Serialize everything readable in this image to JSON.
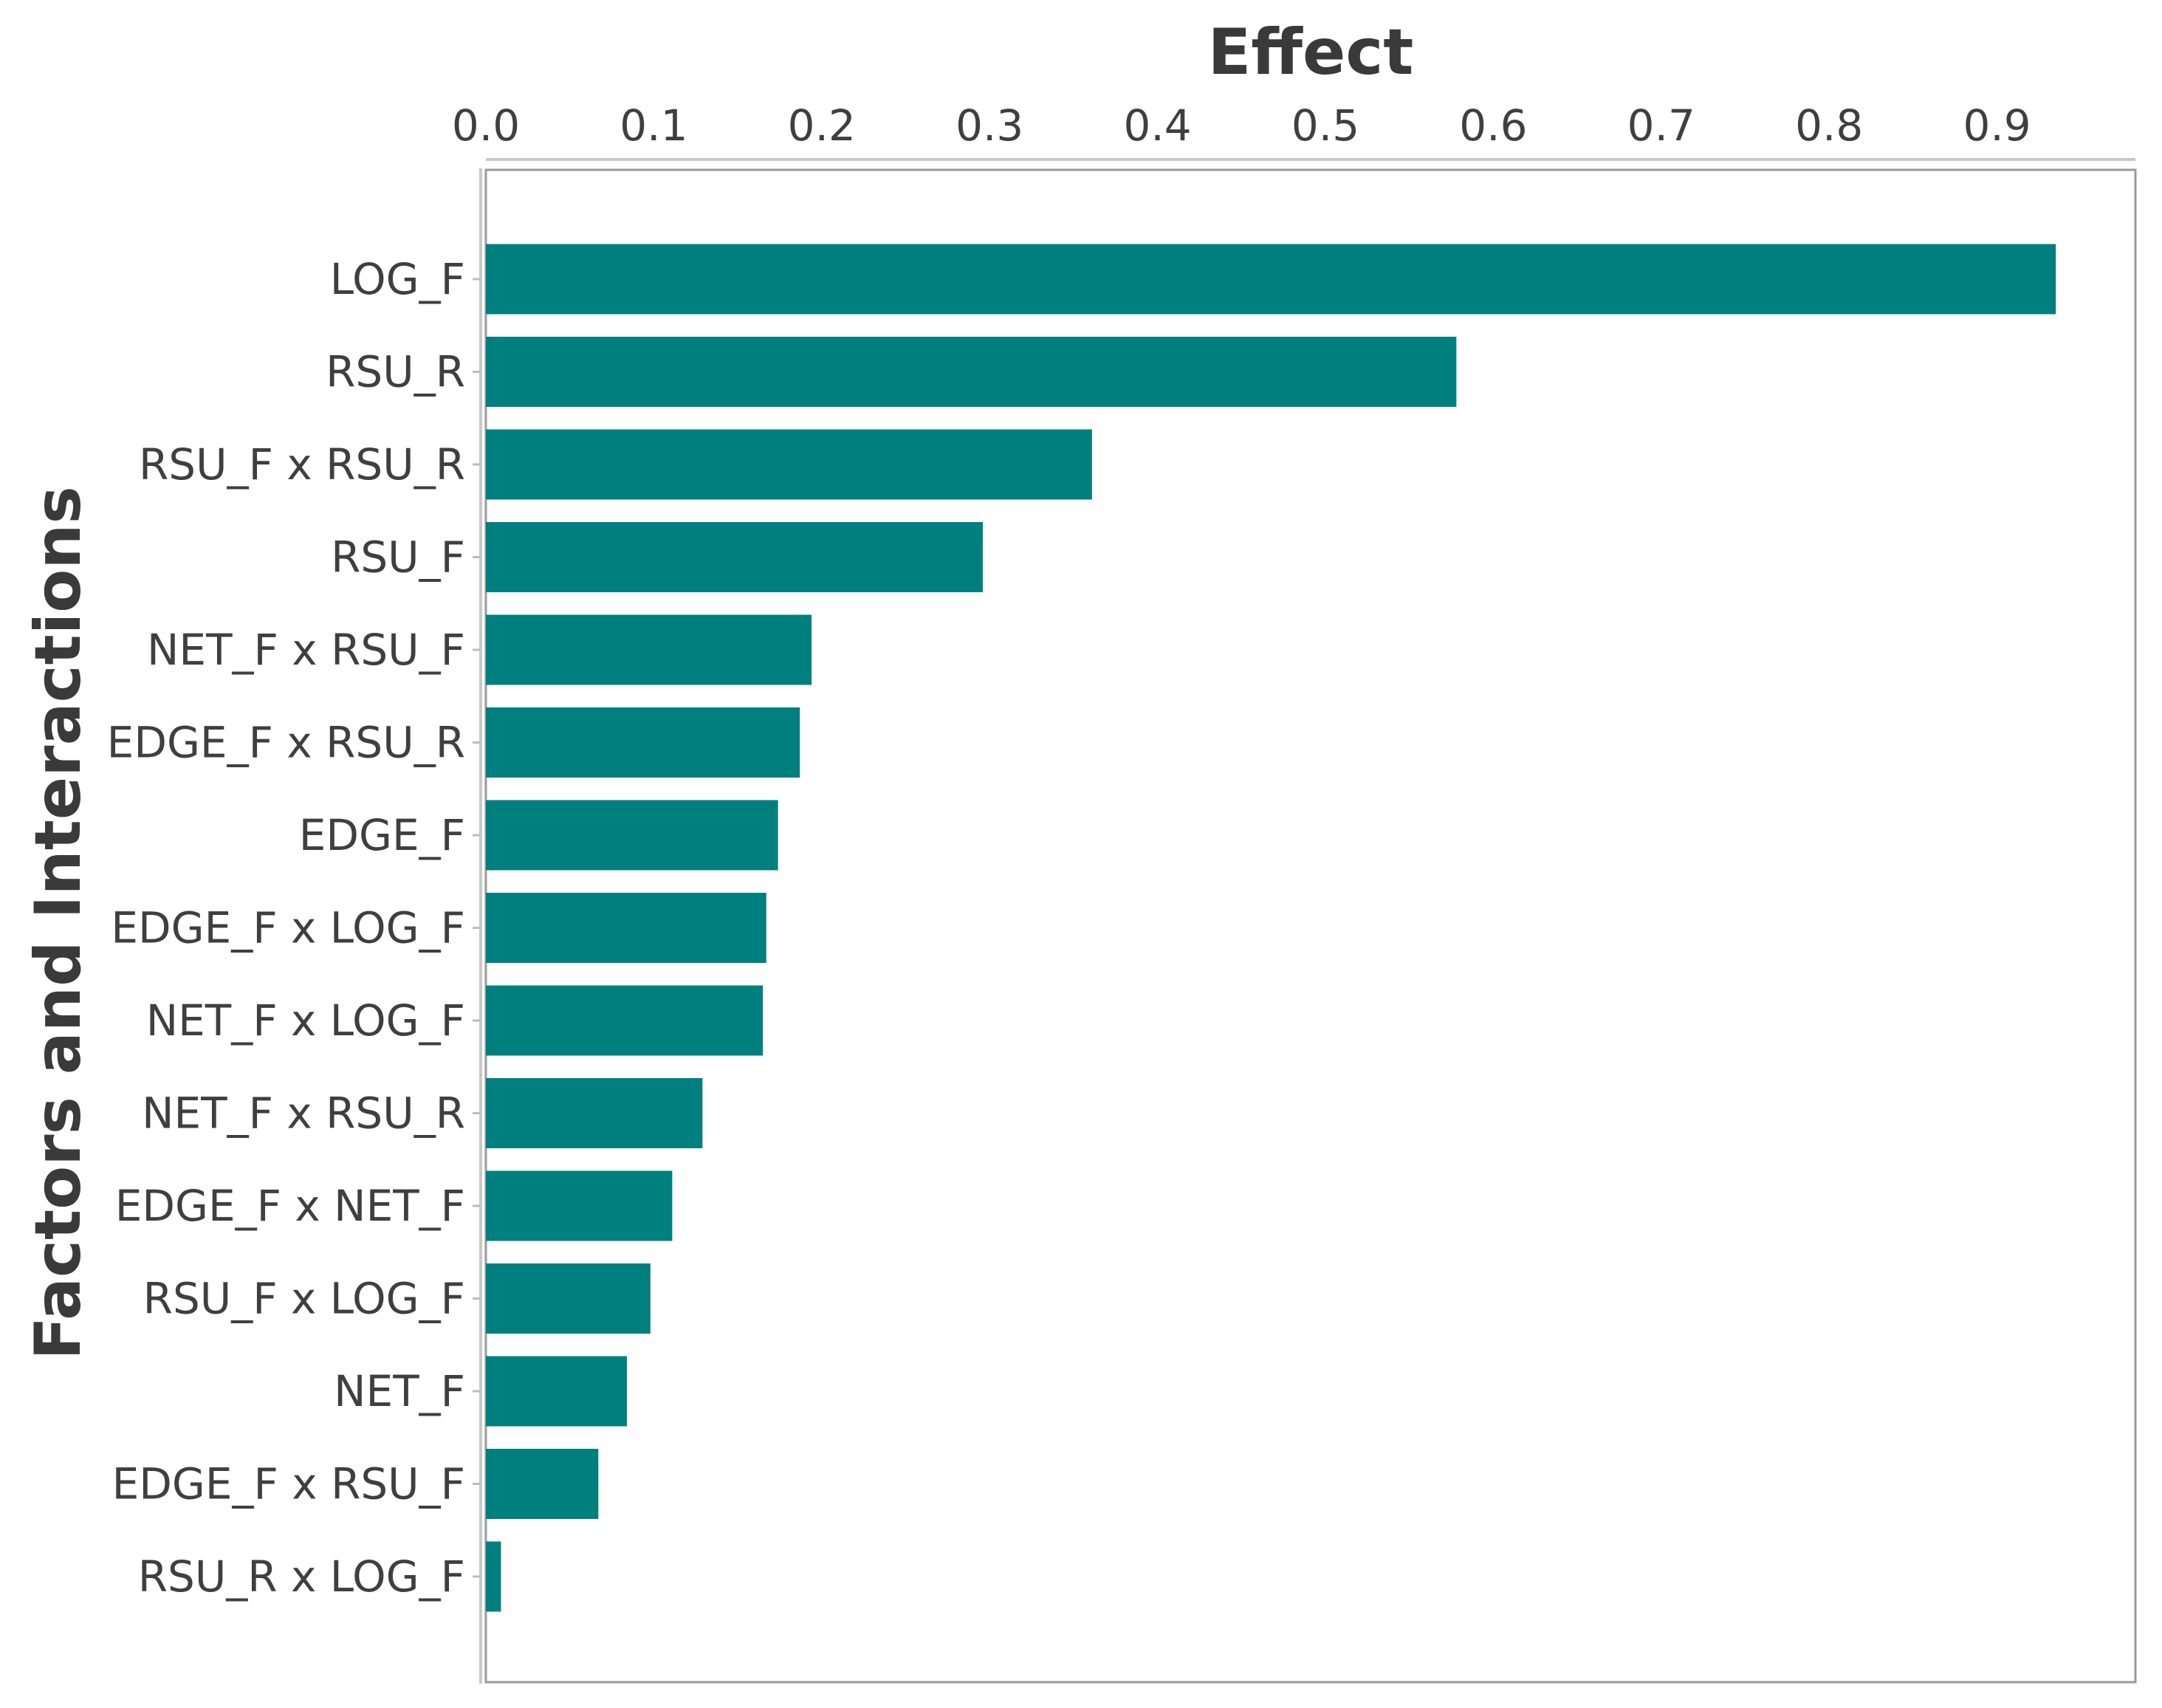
{
  "chart_data": {
    "type": "bar",
    "orientation": "horizontal",
    "title": "",
    "xlabel": "Effect",
    "ylabel": "Factors and Interactions",
    "xaxis_position": "top",
    "xlim": [
      0,
      0.98
    ],
    "xticks": [
      "0.0",
      "0.1",
      "0.2",
      "0.3",
      "0.4",
      "0.5",
      "0.6",
      "0.7",
      "0.8",
      "0.9"
    ],
    "grid": false,
    "bar_color": "#007f7f",
    "categories": [
      "LOG_F",
      "RSU_R",
      "RSU_F x RSU_R",
      "RSU_F",
      "NET_F x RSU_F",
      "EDGE_F x RSU_R",
      "EDGE_F",
      "EDGE_F x LOG_F",
      "NET_F x LOG_F",
      "NET_F x RSU_R",
      "EDGE_F x NET_F",
      "RSU_F x LOG_F",
      "NET_F",
      "EDGE_F x RSU_F",
      "RSU_R x LOG_F"
    ],
    "values": [
      0.935,
      0.578,
      0.361,
      0.296,
      0.194,
      0.187,
      0.174,
      0.167,
      0.165,
      0.129,
      0.111,
      0.098,
      0.084,
      0.067,
      0.009
    ]
  }
}
